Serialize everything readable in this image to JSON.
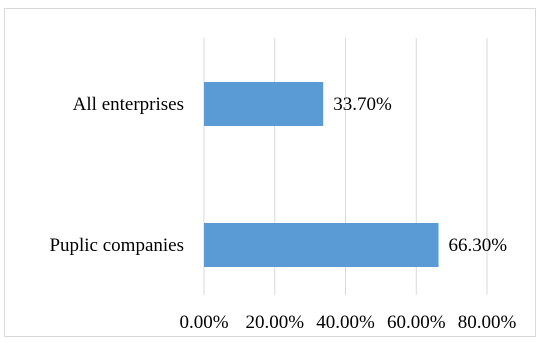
{
  "chart_data": {
    "type": "bar",
    "orientation": "horizontal",
    "categories": [
      "All enterprises",
      "Puplic companies"
    ],
    "values": [
      33.7,
      66.3
    ],
    "data_labels": [
      "33.70%",
      "66.30%"
    ],
    "x_ticks": [
      0,
      20,
      40,
      60,
      80
    ],
    "x_tick_labels": [
      "0.00%",
      "20.00%",
      "40.00%",
      "60.00%",
      "80.00%"
    ],
    "xlim": [
      0,
      80
    ],
    "grid": "vertical",
    "legend": "none",
    "title": "",
    "xlabel": "",
    "ylabel": "",
    "bar_color": "#5b9bd5",
    "grid_color": "#d9d9d9"
  }
}
